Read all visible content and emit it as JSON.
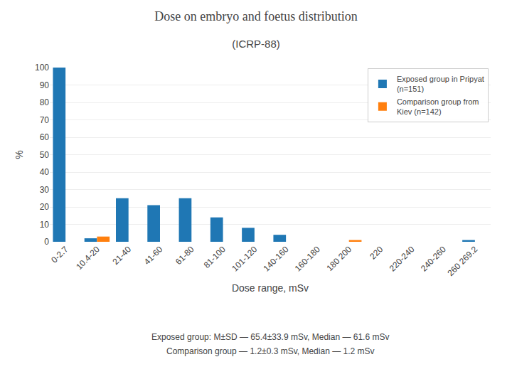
{
  "chart_data": {
    "type": "bar",
    "title": "Dose on embryo and foetus distribution",
    "subtitle": "(ICRP-88)",
    "xlabel": "Dose range, mSv",
    "ylabel": "%",
    "categories": [
      "0-2.7",
      "10.4-20",
      "21-40",
      "41-60",
      "61-80",
      "81-100",
      "101-120",
      "140-160",
      "160-180",
      "180 200",
      "220",
      "220-240",
      "240-260",
      "260 269.2"
    ],
    "series": [
      {
        "name": "Exposed group in Pripyat\n(n=151)",
        "values": [
          100,
          2,
          25,
          21,
          25,
          14,
          8,
          4,
          0,
          0,
          0,
          0,
          0,
          1
        ]
      },
      {
        "name": "Comparison group from\nKiev (n=142)",
        "values": [
          0,
          3,
          0,
          0,
          0,
          0,
          0,
          0,
          0,
          1,
          0,
          0,
          0,
          0
        ]
      }
    ],
    "ylim": [
      0,
      100
    ],
    "yticks": [
      0,
      10,
      20,
      30,
      40,
      50,
      60,
      70,
      80,
      90,
      100
    ],
    "grid": true,
    "legend": "upper right",
    "annotations": [
      "Exposed group: M±SD — 65.4±33.9 mSv, Median — 61.6 mSv",
      "Comparison group — 1.2±0.3 mSv, Median — 1.2 mSv"
    ]
  }
}
